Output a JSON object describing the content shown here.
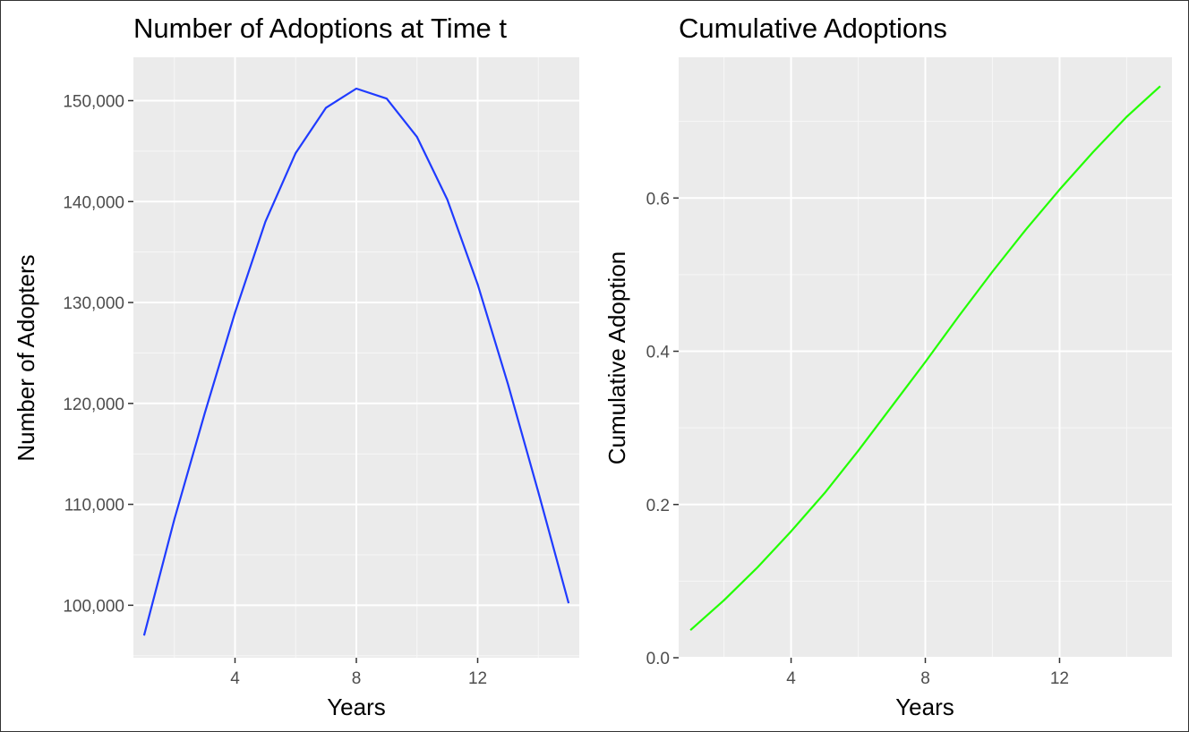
{
  "chart_data": [
    {
      "type": "line",
      "title": "Number of Adoptions at Time t",
      "xlabel": "Years",
      "ylabel": "Number of Adopters",
      "xlim": [
        0.65,
        15.35
      ],
      "ylim": [
        94800,
        154300
      ],
      "x_ticks": [
        4,
        8,
        12
      ],
      "x_tick_labels": [
        "4",
        "8",
        "12"
      ],
      "y_ticks": [
        100000,
        110000,
        120000,
        130000,
        140000,
        150000
      ],
      "y_tick_labels": [
        "100,000",
        "110,000",
        "120,000",
        "130,000",
        "140,000",
        "150,000"
      ],
      "grid": true,
      "background": "#ebebeb",
      "series": [
        {
          "color": "#1f3bff",
          "x": [
            1,
            2,
            3,
            4,
            5,
            6,
            7,
            8,
            9,
            10,
            11,
            12,
            13,
            14,
            15
          ],
          "y": [
            97000,
            108500,
            119000,
            129000,
            138000,
            144800,
            149300,
            151200,
            150200,
            146400,
            140200,
            131800,
            121900,
            111200,
            100200
          ]
        }
      ]
    },
    {
      "type": "line",
      "title": "Cumulative Adoptions",
      "xlabel": "Years",
      "ylabel": "Cumulative Adoption",
      "xlim": [
        0.65,
        15.35
      ],
      "ylim": [
        0.0,
        0.7837
      ],
      "x_ticks": [
        4,
        8,
        12
      ],
      "x_tick_labels": [
        "4",
        "8",
        "12"
      ],
      "y_ticks": [
        0.0,
        0.2,
        0.4,
        0.6
      ],
      "y_tick_labels": [
        "0.0",
        "0.2",
        "0.4",
        "0.6"
      ],
      "grid": true,
      "background": "#ebebeb",
      "series": [
        {
          "color": "#22ff00",
          "x": [
            1,
            2,
            3,
            4,
            5,
            6,
            7,
            8,
            9,
            10,
            11,
            12,
            13,
            14,
            15
          ],
          "y": [
            0.036,
            0.075,
            0.118,
            0.165,
            0.215,
            0.27,
            0.328,
            0.386,
            0.446,
            0.504,
            0.559,
            0.611,
            0.66,
            0.706,
            0.746
          ]
        }
      ]
    }
  ]
}
